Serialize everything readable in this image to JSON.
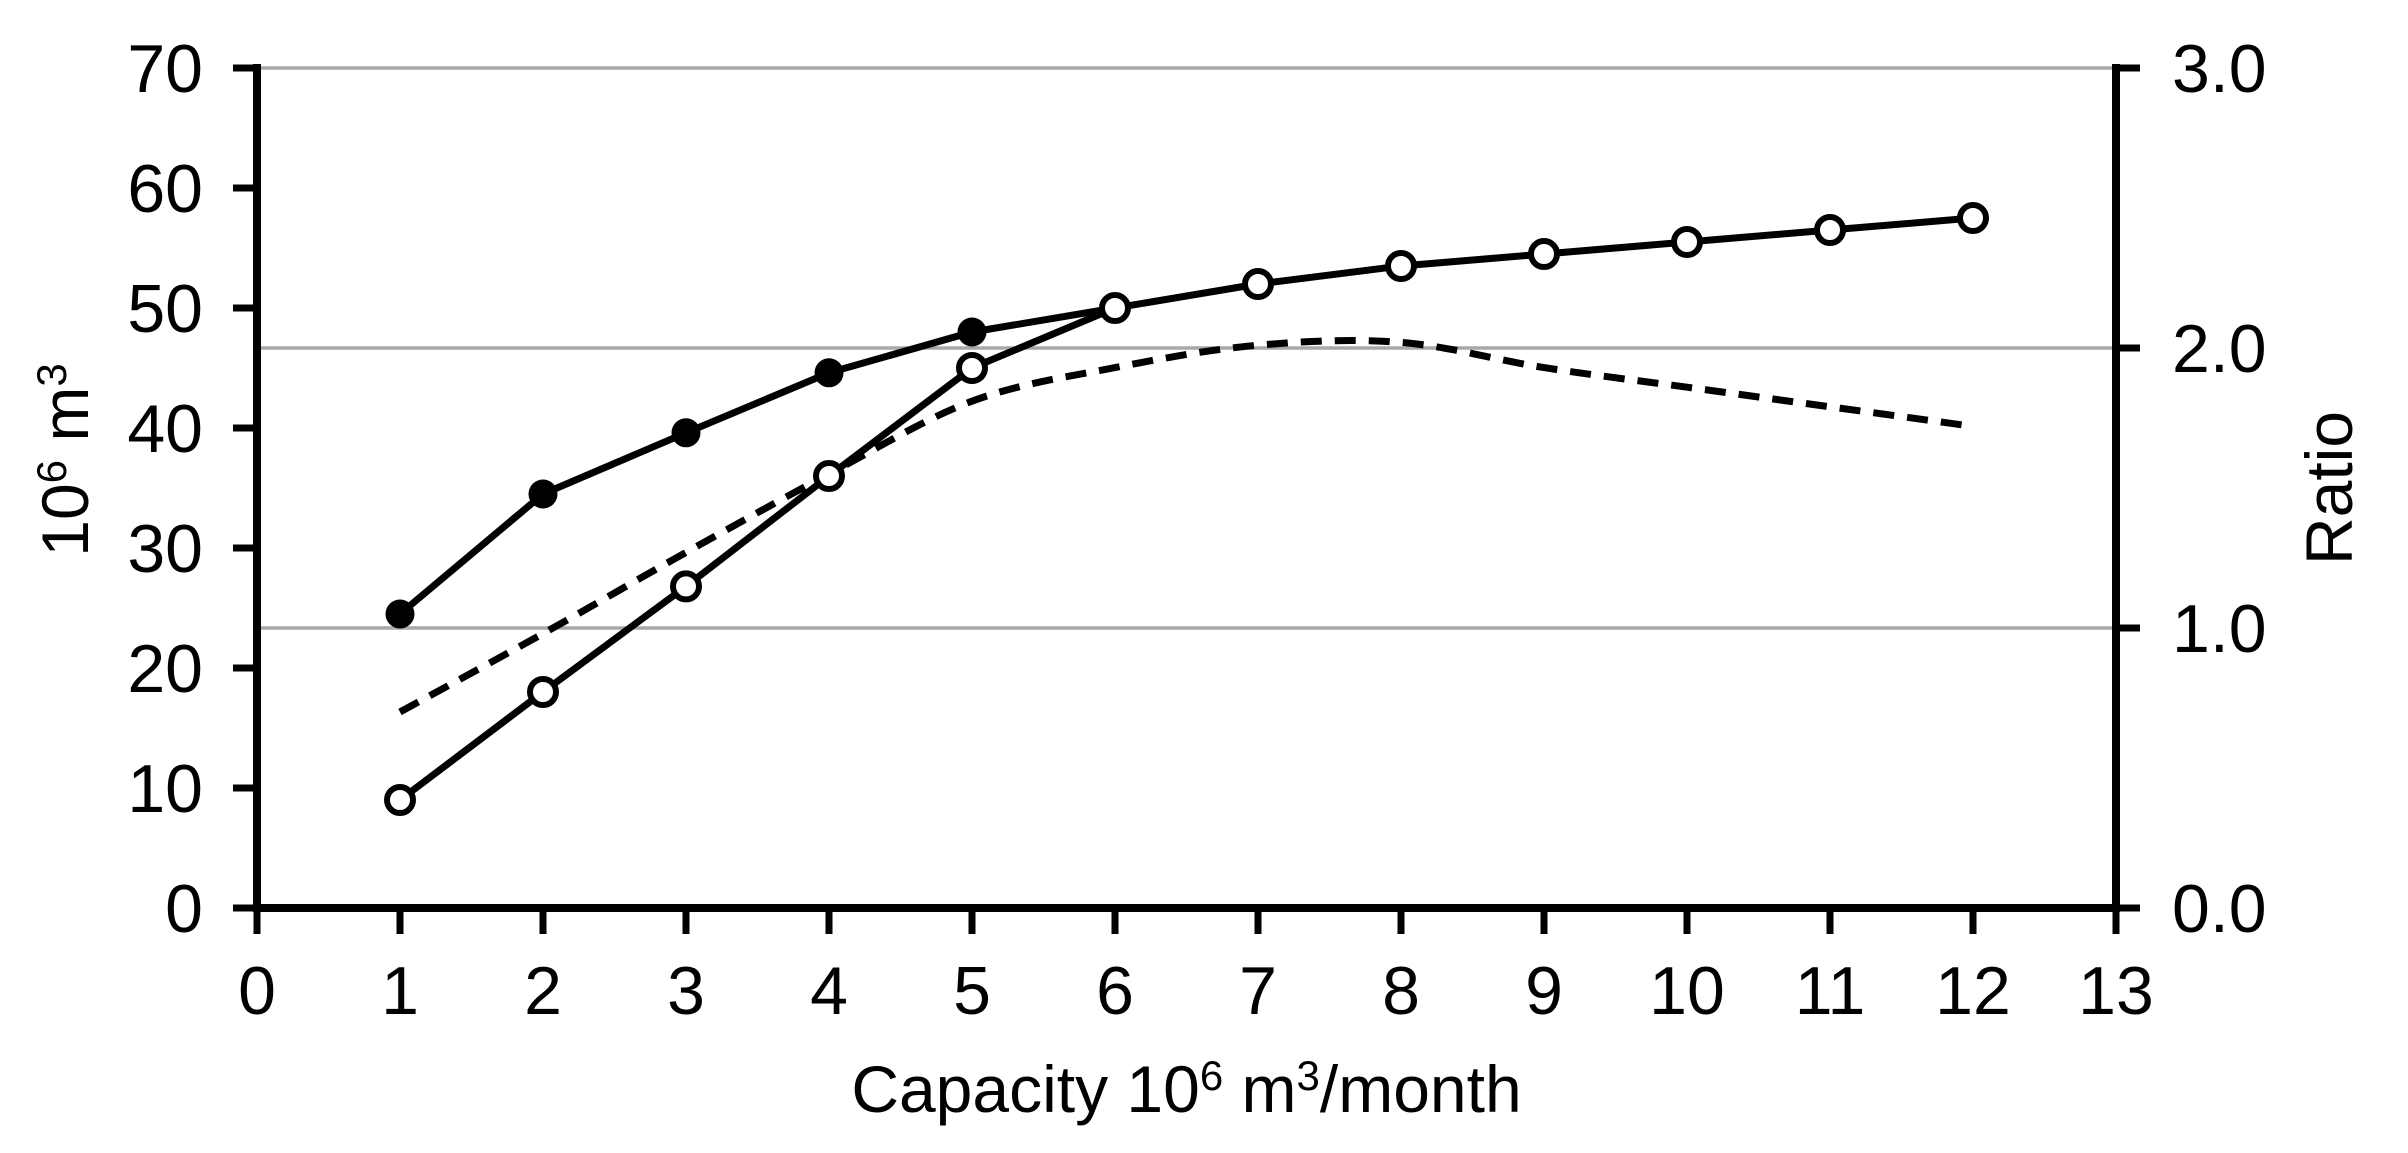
{
  "chart_data": {
    "type": "line",
    "x_axis": {
      "label_parts": [
        {
          "t": "Capacity 10"
        },
        {
          "t": "6",
          "sup": true
        },
        {
          "t": " m"
        },
        {
          "t": "3",
          "sup": true
        },
        {
          "t": "/month"
        }
      ],
      "min": 0,
      "max": 13,
      "ticks": [
        0,
        1,
        2,
        3,
        4,
        5,
        6,
        7,
        8,
        9,
        10,
        11,
        12,
        13
      ]
    },
    "left_axis": {
      "label_parts": [
        {
          "t": "10"
        },
        {
          "t": "6",
          "sup": true
        },
        {
          "t": " m"
        },
        {
          "t": "3",
          "sup": true
        }
      ],
      "min": 0,
      "max": 70,
      "ticks": [
        0,
        10,
        20,
        30,
        40,
        50,
        60,
        70
      ]
    },
    "right_axis": {
      "label": "Ratio",
      "min": 0,
      "max": 3,
      "ticks": [
        {
          "v": 0,
          "t": "0.0"
        },
        {
          "v": 1,
          "t": "1.0"
        },
        {
          "v": 2,
          "t": "2.0"
        },
        {
          "v": 3,
          "t": "3.0"
        }
      ],
      "gridlines": [
        1,
        2,
        3
      ]
    },
    "series": [
      {
        "name": "filled-circle-series",
        "axis": "left",
        "line": "solid",
        "marker": "filled",
        "smooth": false,
        "x": [
          1,
          2,
          3,
          4,
          5,
          6
        ],
        "values": [
          24.5,
          34.5,
          39.6,
          44.6,
          48,
          50
        ]
      },
      {
        "name": "open-circle-series",
        "axis": "left",
        "line": "solid",
        "marker": "open",
        "smooth": false,
        "x": [
          1,
          2,
          3,
          4,
          5,
          6,
          7,
          8,
          9,
          10,
          11,
          12
        ],
        "values": [
          9,
          18,
          26.8,
          36,
          45,
          50,
          52,
          53.5,
          54.5,
          55.5,
          56.5,
          57.5
        ]
      },
      {
        "name": "dashed-ratio-series",
        "axis": "right",
        "line": "dashed",
        "marker": "none",
        "smooth": true,
        "x": [
          1,
          2,
          3,
          4,
          5,
          6,
          7,
          8,
          9,
          10,
          11,
          12
        ],
        "values": [
          0.7,
          0.98,
          1.27,
          1.55,
          1.81,
          1.93,
          2.01,
          2.02,
          1.93,
          1.86,
          1.79,
          1.72
        ]
      }
    ],
    "style": {
      "line_color": "#000000",
      "gridline_color": "#A8A8A8",
      "background": "#FFFFFF",
      "text_color": "#000000"
    }
  }
}
